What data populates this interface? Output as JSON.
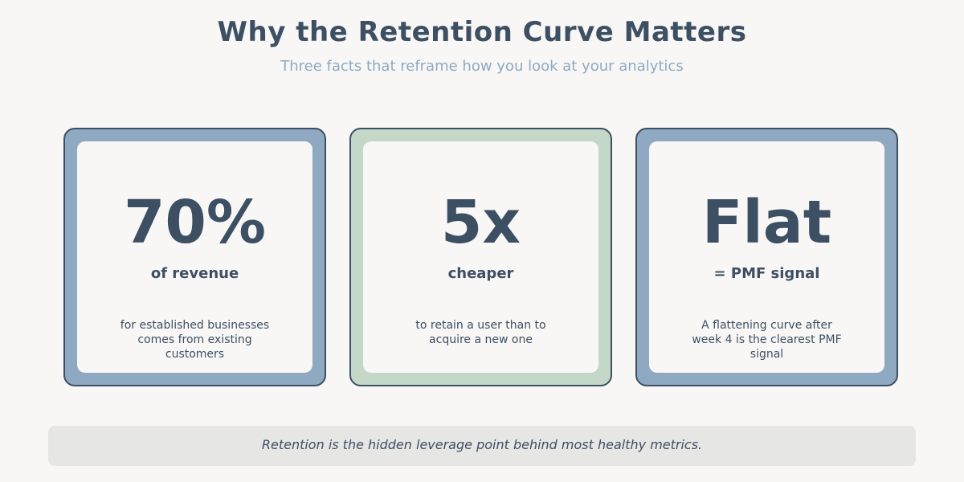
{
  "header": {
    "title": "Why the Retention Curve Matters",
    "subtitle": "Three facts that reframe how you look at your analytics"
  },
  "cards": [
    {
      "headline": "70%",
      "label": "of revenue",
      "description": "for established businesses comes from existing customers"
    },
    {
      "headline": "5x",
      "label": "cheaper",
      "description": "to retain a user than to acquire a new one"
    },
    {
      "headline": "Flat",
      "label": "= PMF signal",
      "description": "A flattening curve after week 4 is the clearest PMF signal"
    }
  ],
  "footer": {
    "note": "Retention is the hidden leverage point behind most healthy metrics."
  }
}
